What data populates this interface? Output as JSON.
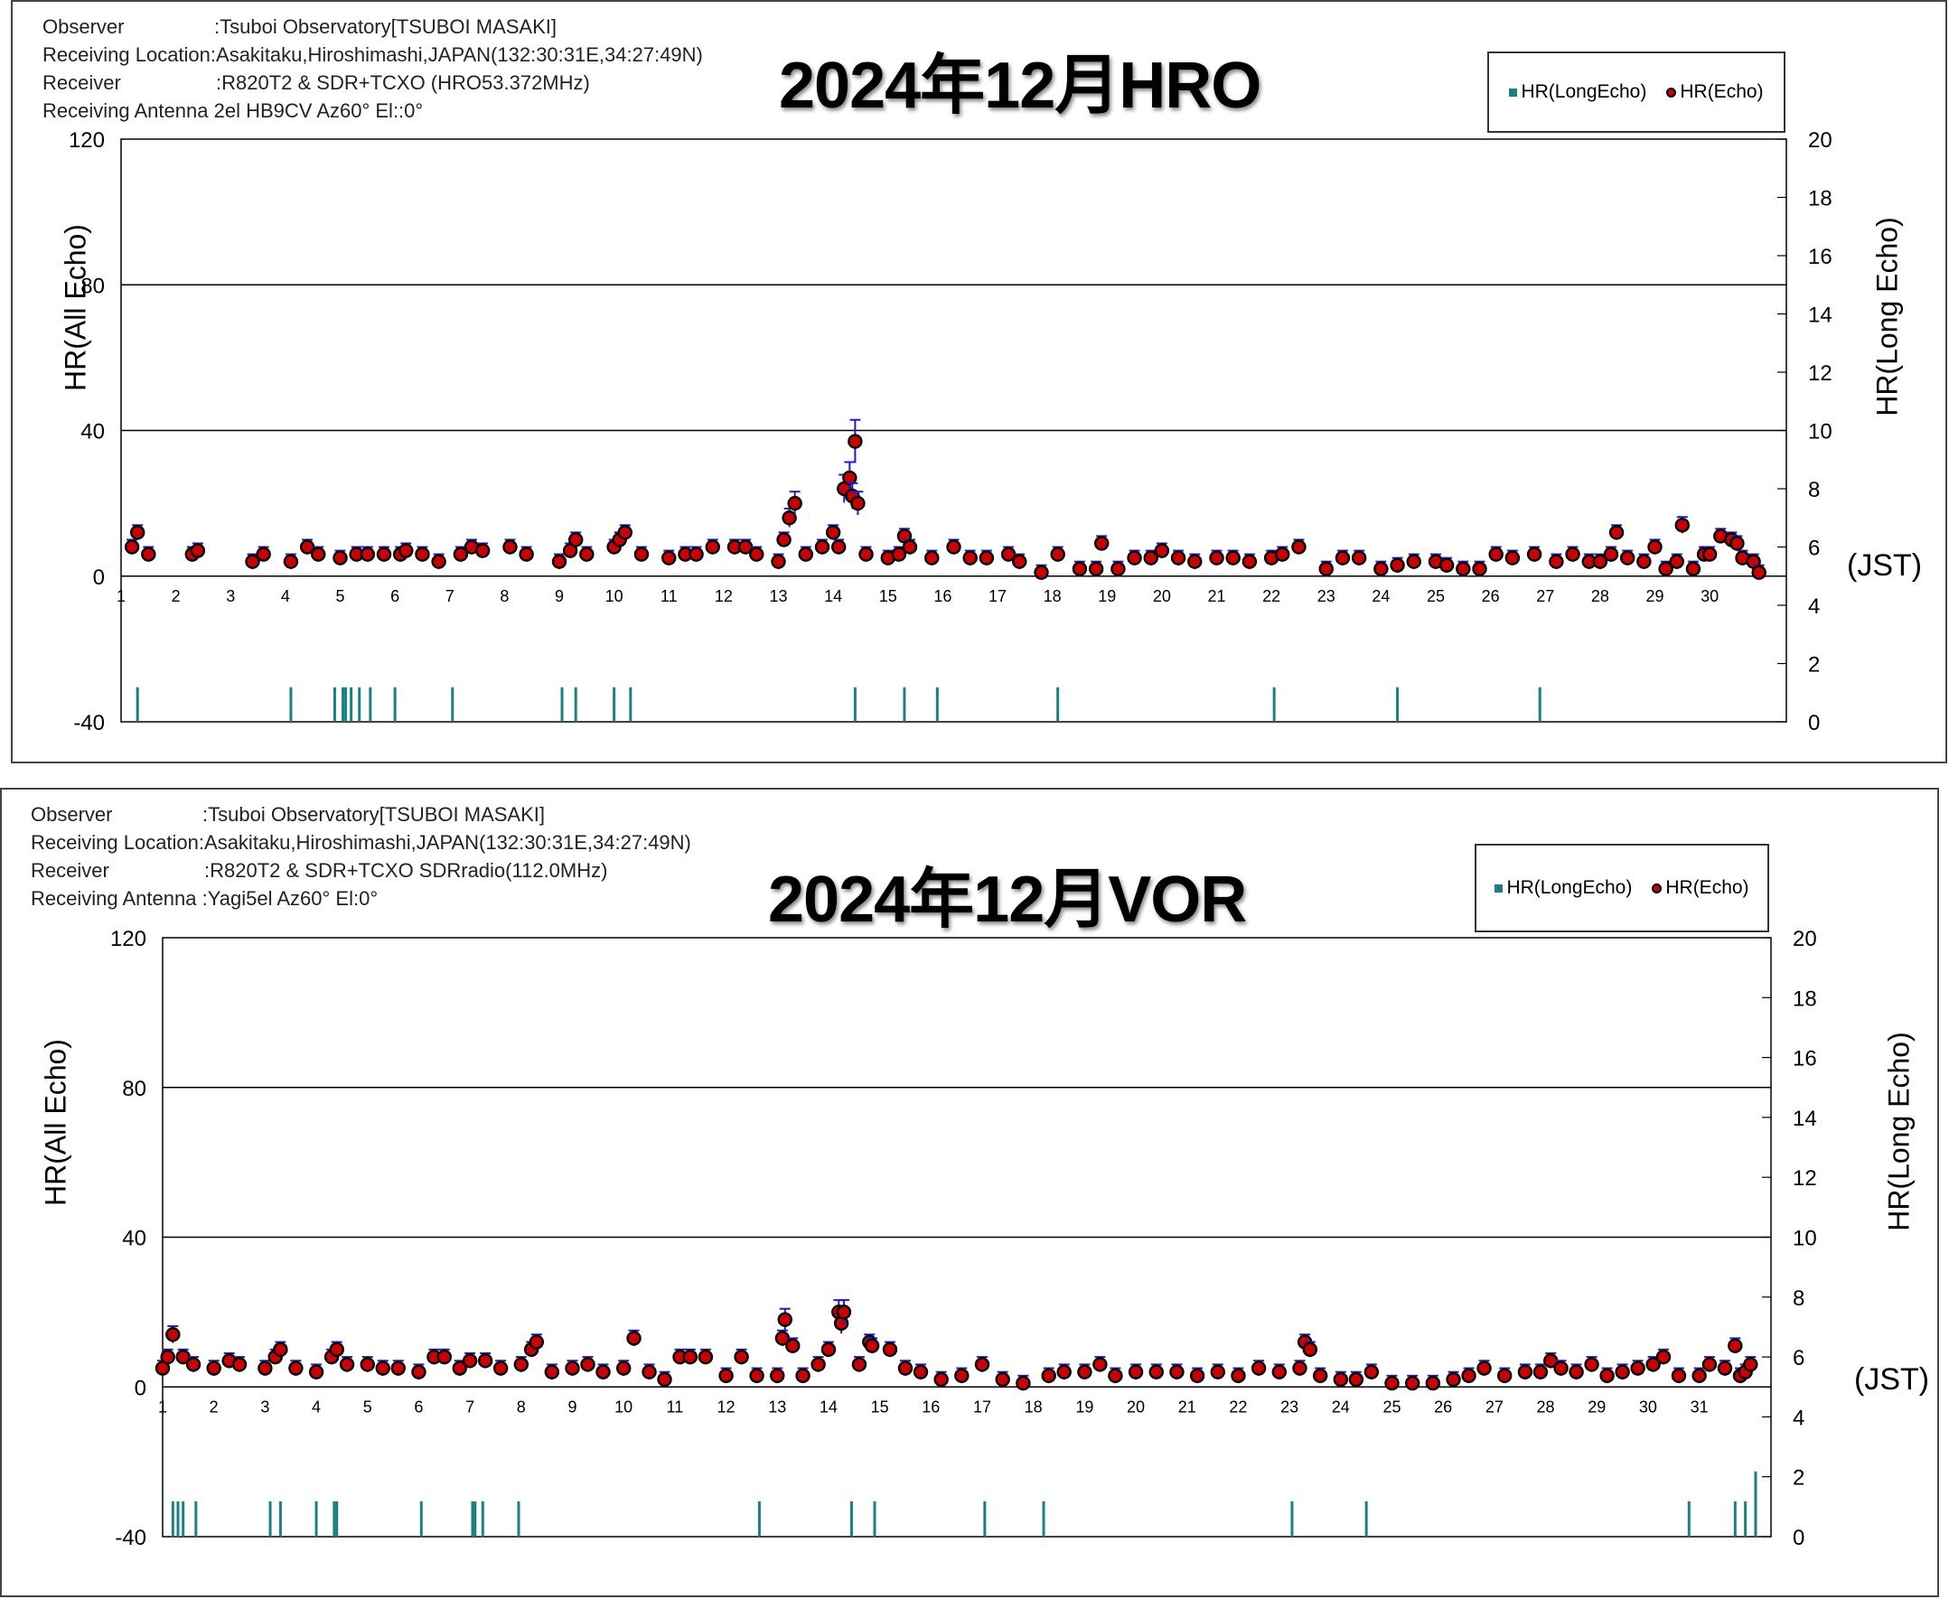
{
  "colors": {
    "echo_fill": "#cc0000",
    "echo_stroke": "#000000",
    "errbar": "#1a1ad6",
    "long_echo": "#1a8080",
    "grid": "#000000"
  },
  "chart_data": [
    {
      "id": "hro",
      "type": "scatter",
      "title": "2024年12月HRO",
      "info": [
        {
          "label": "Observer",
          "value": ":Tsuboi Observatory[TSUBOI MASAKI]"
        },
        {
          "label": "Receiving Location",
          "value": ":Asakitaku,Hiroshimashi,JAPAN(132:30:31E,34:27:49N)"
        },
        {
          "label": "Receiver",
          "value": ":R820T2 & SDR+TCXO (HRO53.372MHz)"
        },
        {
          "label": "Receiving Antenna",
          "value": "2el HB9CV Az60° El::0°"
        }
      ],
      "legend": [
        "HR(LongEcho)",
        "HR(Echo)"
      ],
      "ylabel_left": "HR(All Echo)",
      "ylabel_right": "HR(Long Echo)",
      "xunit": "(JST)",
      "ylim_left": [
        -40,
        120
      ],
      "yticks_left": [
        "120",
        "80",
        "40",
        "0",
        "-40"
      ],
      "ylim_right": [
        0,
        20
      ],
      "yticks_right": [
        "20",
        "18",
        "16",
        "14",
        "12",
        "10",
        "8",
        "6",
        "4",
        "2",
        "0"
      ],
      "xlim": [
        1,
        31
      ],
      "xticks": [
        "1",
        "2",
        "3",
        "4",
        "5",
        "6",
        "7",
        "8",
        "9",
        "10",
        "11",
        "12",
        "13",
        "14",
        "15",
        "16",
        "17",
        "18",
        "19",
        "20",
        "21",
        "22",
        "23",
        "24",
        "25",
        "26",
        "27",
        "28",
        "29",
        "30"
      ],
      "grid": "horizontal at 40 and 80",
      "echo_series": [
        [
          1.2,
          8
        ],
        [
          1.3,
          12
        ],
        [
          1.5,
          6
        ],
        [
          2.3,
          6
        ],
        [
          2.4,
          7
        ],
        [
          3.4,
          4
        ],
        [
          3.6,
          6
        ],
        [
          4.1,
          4
        ],
        [
          4.4,
          8
        ],
        [
          4.6,
          6
        ],
        [
          5.0,
          5
        ],
        [
          5.3,
          6
        ],
        [
          5.5,
          6
        ],
        [
          5.8,
          6
        ],
        [
          6.1,
          6
        ],
        [
          6.2,
          7
        ],
        [
          6.5,
          6
        ],
        [
          6.8,
          4
        ],
        [
          7.2,
          6
        ],
        [
          7.4,
          8
        ],
        [
          7.6,
          7
        ],
        [
          8.1,
          8
        ],
        [
          8.4,
          6
        ],
        [
          9.0,
          4
        ],
        [
          9.2,
          7
        ],
        [
          9.3,
          10
        ],
        [
          9.5,
          6
        ],
        [
          10.0,
          8
        ],
        [
          10.1,
          10
        ],
        [
          10.2,
          12
        ],
        [
          10.5,
          6
        ],
        [
          11.0,
          5
        ],
        [
          11.3,
          6
        ],
        [
          11.5,
          6
        ],
        [
          11.8,
          8
        ],
        [
          12.2,
          8
        ],
        [
          12.4,
          8
        ],
        [
          12.6,
          6
        ],
        [
          13.0,
          4
        ],
        [
          13.1,
          10
        ],
        [
          13.2,
          16
        ],
        [
          13.3,
          20
        ],
        [
          13.5,
          6
        ],
        [
          13.8,
          8
        ],
        [
          14.0,
          12
        ],
        [
          14.1,
          8
        ],
        [
          14.2,
          24
        ],
        [
          14.3,
          27
        ],
        [
          14.35,
          22
        ],
        [
          14.4,
          37
        ],
        [
          14.45,
          20
        ],
        [
          14.6,
          6
        ],
        [
          15.0,
          5
        ],
        [
          15.2,
          6
        ],
        [
          15.3,
          11
        ],
        [
          15.4,
          8
        ],
        [
          15.8,
          5
        ],
        [
          16.2,
          8
        ],
        [
          16.5,
          5
        ],
        [
          16.8,
          5
        ],
        [
          17.2,
          6
        ],
        [
          17.4,
          4
        ],
        [
          17.8,
          1
        ],
        [
          18.1,
          6
        ],
        [
          18.5,
          2
        ],
        [
          18.8,
          2
        ],
        [
          18.9,
          9
        ],
        [
          19.2,
          2
        ],
        [
          19.5,
          5
        ],
        [
          19.8,
          5
        ],
        [
          20.0,
          7
        ],
        [
          20.3,
          5
        ],
        [
          20.6,
          4
        ],
        [
          21.0,
          5
        ],
        [
          21.3,
          5
        ],
        [
          21.6,
          4
        ],
        [
          22.0,
          5
        ],
        [
          22.2,
          6
        ],
        [
          22.5,
          8
        ],
        [
          23.0,
          2
        ],
        [
          23.3,
          5
        ],
        [
          23.6,
          5
        ],
        [
          24.0,
          2
        ],
        [
          24.3,
          3
        ],
        [
          24.6,
          4
        ],
        [
          25.0,
          4
        ],
        [
          25.2,
          3
        ],
        [
          25.5,
          2
        ],
        [
          25.8,
          2
        ],
        [
          26.1,
          6
        ],
        [
          26.4,
          5
        ],
        [
          26.8,
          6
        ],
        [
          27.2,
          4
        ],
        [
          27.5,
          6
        ],
        [
          27.8,
          4
        ],
        [
          28.0,
          4
        ],
        [
          28.2,
          6
        ],
        [
          28.3,
          12
        ],
        [
          28.5,
          5
        ],
        [
          28.8,
          4
        ],
        [
          29.0,
          8
        ],
        [
          29.2,
          2
        ],
        [
          29.4,
          4
        ],
        [
          29.5,
          14
        ],
        [
          29.7,
          2
        ],
        [
          29.9,
          6
        ],
        [
          30.0,
          6
        ],
        [
          30.2,
          11
        ],
        [
          30.4,
          10
        ],
        [
          30.5,
          9
        ],
        [
          30.6,
          5
        ],
        [
          30.8,
          4
        ],
        [
          30.9,
          1
        ]
      ],
      "long_echo_series": [
        [
          1.3,
          1
        ],
        [
          4.1,
          1
        ],
        [
          4.9,
          1
        ],
        [
          5.05,
          1
        ],
        [
          5.1,
          1
        ],
        [
          5.2,
          1
        ],
        [
          5.35,
          1
        ],
        [
          5.55,
          1
        ],
        [
          6.0,
          1
        ],
        [
          7.05,
          1
        ],
        [
          9.05,
          1
        ],
        [
          9.3,
          1
        ],
        [
          10.0,
          1
        ],
        [
          10.3,
          1
        ],
        [
          14.4,
          1
        ],
        [
          15.3,
          1
        ],
        [
          15.9,
          1
        ],
        [
          18.1,
          1
        ],
        [
          22.05,
          1
        ],
        [
          24.3,
          1
        ],
        [
          26.9,
          1
        ]
      ]
    },
    {
      "id": "vor",
      "type": "scatter",
      "title": "2024年12月VOR",
      "info": [
        {
          "label": "Observer",
          "value": ":Tsuboi Observatory[TSUBOI MASAKI]"
        },
        {
          "label": "Receiving Location",
          "value": ":Asakitaku,Hiroshimashi,JAPAN(132:30:31E,34:27:49N)"
        },
        {
          "label": "Receiver",
          "value": ":R820T2 & SDR+TCXO SDRradio(112.0MHz)"
        },
        {
          "label": "Receiving Antenna",
          "value": ":Yagi5el Az60° El:0°"
        }
      ],
      "legend": [
        "HR(LongEcho)",
        "HR(Echo)"
      ],
      "ylabel_left": "HR(All Echo)",
      "ylabel_right": "HR(Long Echo)",
      "xunit": "(JST)",
      "ylim_left": [
        -40,
        120
      ],
      "yticks_left": [
        "120",
        "80",
        "40",
        "0",
        "-40"
      ],
      "ylim_right": [
        0,
        20
      ],
      "yticks_right": [
        "20",
        "18",
        "16",
        "14",
        "12",
        "10",
        "8",
        "6",
        "4",
        "2",
        "0"
      ],
      "xlim": [
        1,
        32
      ],
      "xticks": [
        "1",
        "2",
        "3",
        "4",
        "5",
        "6",
        "7",
        "8",
        "9",
        "10",
        "11",
        "12",
        "13",
        "14",
        "15",
        "16",
        "17",
        "18",
        "19",
        "20",
        "21",
        "22",
        "23",
        "24",
        "25",
        "26",
        "27",
        "28",
        "29",
        "30",
        "31"
      ],
      "grid": "horizontal at 40 and 80",
      "echo_series": [
        [
          1.0,
          5
        ],
        [
          1.1,
          8
        ],
        [
          1.2,
          14
        ],
        [
          1.4,
          8
        ],
        [
          1.6,
          6
        ],
        [
          2.0,
          5
        ],
        [
          2.3,
          7
        ],
        [
          2.5,
          6
        ],
        [
          3.0,
          5
        ],
        [
          3.2,
          8
        ],
        [
          3.3,
          10
        ],
        [
          3.6,
          5
        ],
        [
          4.0,
          4
        ],
        [
          4.3,
          8
        ],
        [
          4.4,
          10
        ],
        [
          4.6,
          6
        ],
        [
          5.0,
          6
        ],
        [
          5.3,
          5
        ],
        [
          5.6,
          5
        ],
        [
          6.0,
          4
        ],
        [
          6.3,
          8
        ],
        [
          6.5,
          8
        ],
        [
          6.8,
          5
        ],
        [
          7.0,
          7
        ],
        [
          7.3,
          7
        ],
        [
          7.6,
          5
        ],
        [
          8.0,
          6
        ],
        [
          8.2,
          10
        ],
        [
          8.3,
          12
        ],
        [
          8.6,
          4
        ],
        [
          9.0,
          5
        ],
        [
          9.3,
          6
        ],
        [
          9.6,
          4
        ],
        [
          10.0,
          5
        ],
        [
          10.2,
          13
        ],
        [
          10.5,
          4
        ],
        [
          10.8,
          2
        ],
        [
          11.1,
          8
        ],
        [
          11.3,
          8
        ],
        [
          11.6,
          8
        ],
        [
          12.0,
          3
        ],
        [
          12.3,
          8
        ],
        [
          12.6,
          3
        ],
        [
          13.0,
          3
        ],
        [
          13.1,
          13
        ],
        [
          13.15,
          18
        ],
        [
          13.3,
          11
        ],
        [
          13.5,
          3
        ],
        [
          13.8,
          6
        ],
        [
          14.0,
          10
        ],
        [
          14.2,
          20
        ],
        [
          14.25,
          17
        ],
        [
          14.3,
          20
        ],
        [
          14.6,
          6
        ],
        [
          14.8,
          12
        ],
        [
          14.85,
          11
        ],
        [
          15.2,
          10
        ],
        [
          15.5,
          5
        ],
        [
          15.8,
          4
        ],
        [
          16.2,
          2
        ],
        [
          16.6,
          3
        ],
        [
          17.0,
          6
        ],
        [
          17.4,
          2
        ],
        [
          17.8,
          1
        ],
        [
          18.3,
          3
        ],
        [
          18.6,
          4
        ],
        [
          19.0,
          4
        ],
        [
          19.3,
          6
        ],
        [
          19.6,
          3
        ],
        [
          20.0,
          4
        ],
        [
          20.4,
          4
        ],
        [
          20.8,
          4
        ],
        [
          21.2,
          3
        ],
        [
          21.6,
          4
        ],
        [
          22.0,
          3
        ],
        [
          22.4,
          5
        ],
        [
          22.8,
          4
        ],
        [
          23.2,
          5
        ],
        [
          23.3,
          12
        ],
        [
          23.4,
          10
        ],
        [
          23.6,
          3
        ],
        [
          24.0,
          2
        ],
        [
          24.3,
          2
        ],
        [
          24.6,
          4
        ],
        [
          25.0,
          1
        ],
        [
          25.4,
          1
        ],
        [
          25.8,
          1
        ],
        [
          26.2,
          2
        ],
        [
          26.5,
          3
        ],
        [
          26.8,
          5
        ],
        [
          27.2,
          3
        ],
        [
          27.6,
          4
        ],
        [
          27.9,
          4
        ],
        [
          28.1,
          7
        ],
        [
          28.3,
          5
        ],
        [
          28.6,
          4
        ],
        [
          28.9,
          6
        ],
        [
          29.2,
          3
        ],
        [
          29.5,
          4
        ],
        [
          29.8,
          5
        ],
        [
          30.1,
          6
        ],
        [
          30.3,
          8
        ],
        [
          30.6,
          3
        ],
        [
          31.0,
          3
        ],
        [
          31.2,
          6
        ],
        [
          31.5,
          5
        ],
        [
          31.7,
          11
        ],
        [
          31.8,
          3
        ],
        [
          31.9,
          4
        ],
        [
          32.0,
          6
        ]
      ],
      "long_echo_series": [
        [
          1.2,
          1
        ],
        [
          1.3,
          1
        ],
        [
          1.4,
          1
        ],
        [
          1.65,
          1
        ],
        [
          3.1,
          1
        ],
        [
          3.3,
          1
        ],
        [
          4.0,
          1
        ],
        [
          4.35,
          1
        ],
        [
          4.4,
          1
        ],
        [
          6.05,
          1
        ],
        [
          7.05,
          1
        ],
        [
          7.1,
          1
        ],
        [
          7.25,
          1
        ],
        [
          7.95,
          1
        ],
        [
          12.65,
          1
        ],
        [
          14.45,
          1
        ],
        [
          14.9,
          1
        ],
        [
          17.05,
          1
        ],
        [
          18.2,
          1
        ],
        [
          23.05,
          1
        ],
        [
          24.5,
          1
        ],
        [
          30.8,
          1
        ],
        [
          31.7,
          1
        ],
        [
          31.9,
          1
        ],
        [
          32.1,
          2
        ]
      ]
    }
  ]
}
